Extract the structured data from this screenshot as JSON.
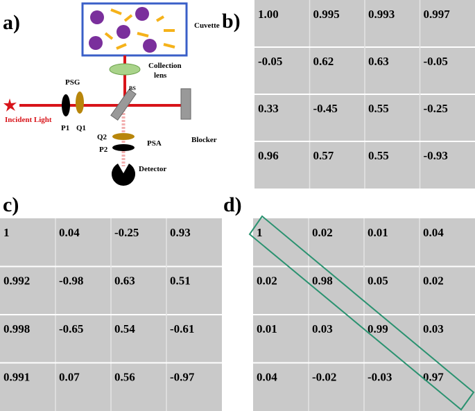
{
  "diagram": {
    "label": "a)",
    "cuvette": "Cuvette",
    "lens": [
      "Collection",
      "lens"
    ],
    "bs": "BS",
    "psg": "PSG",
    "p1": "P1",
    "q1": "Q1",
    "incident": "Incident Light",
    "q2": "Q2",
    "p2": "P2",
    "psa": "PSA",
    "blocker": "Blocker",
    "detector": "Detector"
  },
  "panels": [
    {
      "label": "b)",
      "rows": [
        [
          "1.00",
          "0.995",
          "0.993",
          "0.997"
        ],
        [
          "-0.05",
          "0.62",
          "0.63",
          "-0.05"
        ],
        [
          "0.33",
          "-0.45",
          "0.55",
          "-0.25"
        ],
        [
          "0.96",
          "0.57",
          "0.55",
          "-0.93"
        ]
      ]
    },
    {
      "label": "c)",
      "rows": [
        [
          "1",
          "0.04",
          "-0.25",
          "0.93"
        ],
        [
          "0.992",
          "-0.98",
          "0.63",
          "0.51"
        ],
        [
          "0.998",
          "-0.65",
          "0.54",
          "-0.61"
        ],
        [
          "0.991",
          "0.07",
          "0.56",
          "-0.97"
        ]
      ]
    },
    {
      "label": "d)",
      "rows": [
        [
          "1",
          "0.02",
          "0.01",
          "0.04"
        ],
        [
          "0.02",
          "0.98",
          "0.05",
          "0.02"
        ],
        [
          "0.01",
          "0.03",
          "0.99",
          "0.03"
        ],
        [
          "0.04",
          "-0.02",
          "-0.03",
          "0.97"
        ]
      ]
    }
  ]
}
